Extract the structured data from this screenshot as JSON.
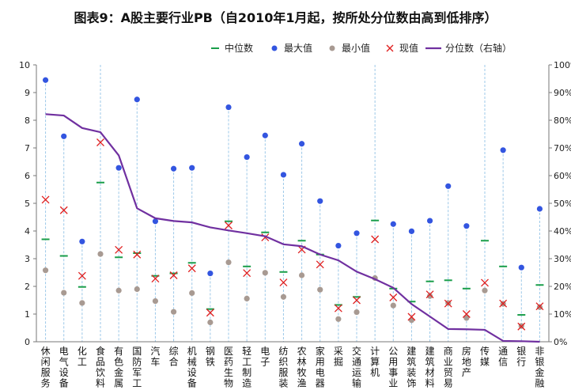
{
  "chart_data": {
    "type": "scatter",
    "title": "图表9：A股主要行业PB（自2010年1月起，按所处分位数由高到低排序）",
    "legend": {
      "position": "top",
      "items": [
        {
          "key": "median",
          "label": "中位数",
          "color": "#1a9e4a",
          "marker": "dash"
        },
        {
          "key": "max",
          "label": "最大值",
          "color": "#3355e0",
          "marker": "dot"
        },
        {
          "key": "min",
          "label": "最小值",
          "color": "#a89a92",
          "marker": "dot"
        },
        {
          "key": "current",
          "label": "现值",
          "color": "#e02020",
          "marker": "x"
        },
        {
          "key": "percentile",
          "label": "分位数（右轴）",
          "color": "#7030a0",
          "marker": "line"
        }
      ]
    },
    "y_left": {
      "min": 0,
      "max": 10,
      "ticks": [
        "0",
        "1",
        "2",
        "3",
        "4",
        "5",
        "6",
        "7",
        "8",
        "9",
        "10"
      ]
    },
    "y_right": {
      "min": 0,
      "max": 100,
      "ticks": [
        "0%",
        "10%",
        "20%",
        "30%",
        "40%",
        "50%",
        "60%",
        "70%",
        "80%",
        "90%",
        "100%"
      ]
    },
    "categories": [
      "休闲服务",
      "电气设备",
      "化工",
      "食品饮料",
      "有色金属",
      "国防军工",
      "汽车",
      "综合",
      "机械设备",
      "钢铁",
      "医药生物",
      "轻工制造",
      "电子",
      "纺织服装",
      "农林牧渔",
      "家用电器",
      "采掘",
      "交通运输",
      "计算机",
      "公用事业",
      "建筑装饰",
      "建筑材料",
      "商业贸易",
      "房地产",
      "传媒",
      "通信",
      "银行",
      "非银金融"
    ],
    "series": [
      {
        "name": "最大值",
        "key": "max",
        "values": [
          9.45,
          7.42,
          3.62,
          null,
          6.28,
          8.75,
          4.35,
          6.25,
          6.28,
          2.47,
          8.47,
          6.67,
          7.45,
          6.03,
          7.15,
          5.08,
          3.47,
          3.92,
          null,
          4.25,
          3.99,
          4.37,
          5.62,
          4.18,
          null,
          6.92,
          2.68,
          4.8
        ]
      },
      {
        "name": "最小值",
        "key": "min",
        "values": [
          2.58,
          1.77,
          1.4,
          3.17,
          1.85,
          1.9,
          1.47,
          1.08,
          1.76,
          0.7,
          2.87,
          1.56,
          2.49,
          1.62,
          2.4,
          1.88,
          0.82,
          1.07,
          2.3,
          1.31,
          0.78,
          1.65,
          1.4,
          0.86,
          1.85,
          1.37,
          0.57,
          1.25
        ]
      },
      {
        "name": "中位数",
        "key": "median",
        "values": [
          3.7,
          3.1,
          1.98,
          5.75,
          3.05,
          3.2,
          2.38,
          2.47,
          2.85,
          1.18,
          4.35,
          2.72,
          3.95,
          2.52,
          3.65,
          3.15,
          1.33,
          1.62,
          4.38,
          1.92,
          1.45,
          2.18,
          2.22,
          1.92,
          3.65,
          2.72,
          0.97,
          2.05
        ]
      },
      {
        "name": "现值",
        "key": "current",
        "values": [
          5.13,
          4.75,
          2.38,
          7.2,
          3.32,
          3.15,
          2.28,
          2.4,
          2.65,
          1.05,
          4.2,
          2.48,
          3.77,
          2.14,
          3.33,
          2.79,
          1.21,
          1.5,
          3.7,
          1.6,
          0.9,
          1.71,
          1.38,
          1.0,
          2.13,
          1.38,
          0.55,
          1.28
        ]
      },
      {
        "name": "分位数（右轴）",
        "key": "percentile",
        "axis": "right",
        "values": [
          82.2,
          81.7,
          77.2,
          75.7,
          67.3,
          48.2,
          44.6,
          43.6,
          43.1,
          41.3,
          40.2,
          39.2,
          38.1,
          35.2,
          34.5,
          31.5,
          29.4,
          25.3,
          22.6,
          19.5,
          13.6,
          9.1,
          4.6,
          4.5,
          4.3,
          0.3,
          0.2,
          0.0
        ]
      }
    ]
  }
}
